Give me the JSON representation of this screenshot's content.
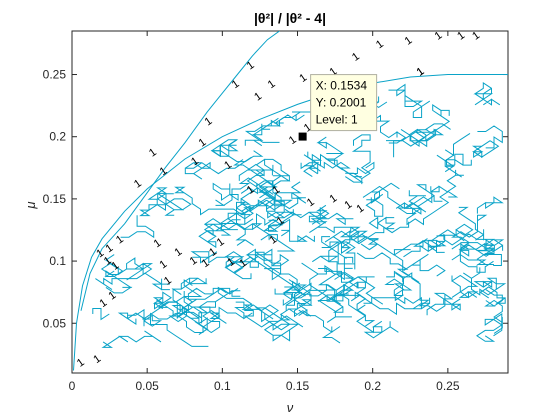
{
  "chart_data": {
    "type": "contour",
    "title": "|θ²| / |θ² - 4|",
    "xlabel": "ν",
    "ylabel": "μ",
    "xlim": [
      0,
      0.29
    ],
    "ylim": [
      0.01,
      0.285
    ],
    "xticks": [
      0,
      0.05,
      0.1,
      0.15,
      0.2,
      0.25
    ],
    "xtick_labels": [
      "0",
      "0.05",
      "0.1",
      "0.15",
      "0.2",
      "0.25"
    ],
    "yticks": [
      0.05,
      0.1,
      0.15,
      0.2,
      0.25
    ],
    "ytick_labels": [
      "0.05",
      "0.1",
      "0.15",
      "0.2",
      "0.25"
    ],
    "grid": false,
    "line_color": "#0aa3c8",
    "contour_level": 1,
    "contour_label": "1",
    "boundary_curve": [
      [
        0.001,
        0.012
      ],
      [
        0.003,
        0.05
      ],
      [
        0.007,
        0.08
      ],
      [
        0.013,
        0.103
      ],
      [
        0.02,
        0.118
      ],
      [
        0.035,
        0.14
      ],
      [
        0.05,
        0.158
      ],
      [
        0.075,
        0.182
      ],
      [
        0.1,
        0.2
      ],
      [
        0.125,
        0.214
      ],
      [
        0.15,
        0.226
      ],
      [
        0.175,
        0.236
      ],
      [
        0.2,
        0.243
      ],
      [
        0.225,
        0.248
      ],
      [
        0.25,
        0.25
      ],
      [
        0.29,
        0.25
      ]
    ],
    "outer_boundary": [
      [
        0.006,
        0.06
      ],
      [
        0.012,
        0.09
      ],
      [
        0.02,
        0.11
      ],
      [
        0.035,
        0.13
      ],
      [
        0.05,
        0.155
      ],
      [
        0.062,
        0.175
      ],
      [
        0.075,
        0.195
      ],
      [
        0.09,
        0.22
      ],
      [
        0.1,
        0.235
      ],
      [
        0.11,
        0.25
      ],
      [
        0.12,
        0.265
      ],
      [
        0.13,
        0.278
      ],
      [
        0.138,
        0.285
      ]
    ],
    "label_positions": [
      [
        0.007,
        0.016
      ],
      [
        0.018,
        0.019
      ],
      [
        0.022,
        0.064
      ],
      [
        0.028,
        0.07
      ],
      [
        0.02,
        0.104
      ],
      [
        0.025,
        0.098
      ],
      [
        0.03,
        0.094
      ],
      [
        0.026,
        0.108
      ],
      [
        0.033,
        0.115
      ],
      [
        0.058,
        0.112
      ],
      [
        0.062,
        0.095
      ],
      [
        0.065,
        0.082
      ],
      [
        0.072,
        0.105
      ],
      [
        0.082,
        0.098
      ],
      [
        0.09,
        0.096
      ],
      [
        0.095,
        0.105
      ],
      [
        0.1,
        0.113
      ],
      [
        0.107,
        0.097
      ],
      [
        0.115,
        0.096
      ],
      [
        0.135,
        0.115
      ],
      [
        0.14,
        0.13
      ],
      [
        0.12,
        0.155
      ],
      [
        0.137,
        0.155
      ],
      [
        0.16,
        0.145
      ],
      [
        0.175,
        0.148
      ],
      [
        0.185,
        0.143
      ],
      [
        0.193,
        0.14
      ],
      [
        0.125,
        0.23
      ],
      [
        0.134,
        0.24
      ],
      [
        0.155,
        0.245
      ],
      [
        0.175,
        0.25
      ],
      [
        0.19,
        0.262
      ],
      [
        0.206,
        0.272
      ],
      [
        0.225,
        0.275
      ],
      [
        0.233,
        0.25
      ],
      [
        0.245,
        0.279
      ],
      [
        0.26,
        0.279
      ],
      [
        0.27,
        0.279
      ],
      [
        0.055,
        0.185
      ],
      [
        0.062,
        0.17
      ],
      [
        0.045,
        0.16
      ],
      [
        0.092,
        0.21
      ],
      [
        0.088,
        0.193
      ],
      [
        0.083,
        0.178
      ],
      [
        0.11,
        0.24
      ],
      [
        0.12,
        0.255
      ],
      [
        0.105,
        0.175
      ],
      [
        0.148,
        0.195
      ],
      [
        0.158,
        0.205
      ],
      [
        0.233,
        0.25
      ]
    ],
    "datatip": {
      "point": [
        0.1534,
        0.2001
      ],
      "x_text": "X: 0.1534",
      "y_text": "Y: 0.2001",
      "level_text": "Level: 1"
    }
  }
}
